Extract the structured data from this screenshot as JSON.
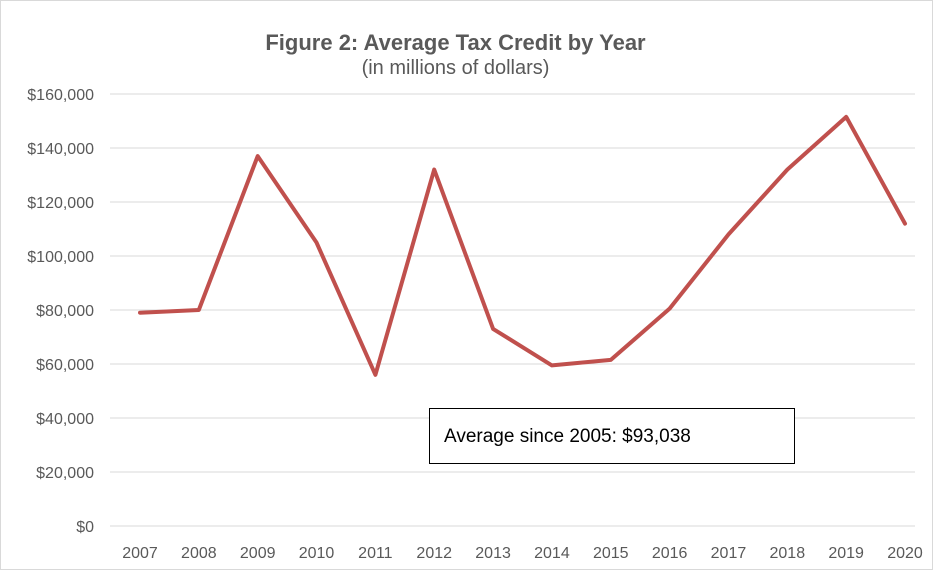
{
  "chart_data": {
    "type": "line",
    "title": "Figure 2: Average Tax Credit by Year",
    "subtitle": "(in millions of dollars)",
    "xlabel": "",
    "ylabel": "",
    "categories": [
      "2007",
      "2008",
      "2009",
      "2010",
      "2011",
      "2012",
      "2013",
      "2014",
      "2015",
      "2016",
      "2017",
      "2018",
      "2019",
      "2020"
    ],
    "series": [
      {
        "color": "#c0504d",
        "values": [
          79000,
          80000,
          137000,
          105000,
          56000,
          132000,
          73000,
          59500,
          61500,
          80500,
          108000,
          132000,
          151500,
          112000
        ]
      }
    ],
    "ylim": [
      0,
      160000
    ],
    "yticks": [
      0,
      20000,
      40000,
      60000,
      80000,
      100000,
      120000,
      140000,
      160000
    ],
    "ytick_labels": [
      "$0",
      "$20,000",
      "$40,000",
      "$60,000",
      "$80,000",
      "$100,000",
      "$120,000",
      "$140,000",
      "$160,000"
    ],
    "grid": true,
    "annotation": "Average since 2005: $93,038"
  }
}
